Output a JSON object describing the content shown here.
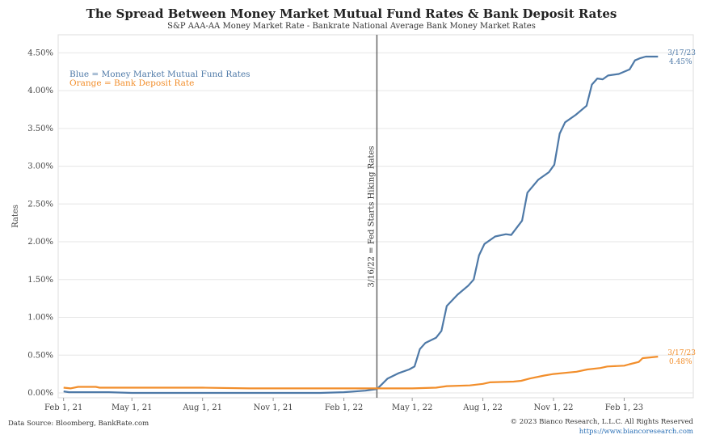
{
  "header": {
    "title": "The Spread Between Money Market Mutual Fund Rates & Bank Deposit Rates",
    "subtitle": "S&P AAA-AA Money Market Rate - Bankrate National Average Bank Money Market Rates"
  },
  "footer": {
    "source": "Data Source: Bloomberg, BankRate.com",
    "copyright": "© 2023 Bianco Research, L.L.C. All Rights Reserved",
    "url": "https://www.biancoresearch.com"
  },
  "colors": {
    "blue": "#4e79a7",
    "orange": "#f28e2b",
    "vline": "#666666",
    "grid": "#e6e6e6"
  },
  "chart_data": {
    "type": "line",
    "ylabel": "Rates",
    "ylim": [
      0,
      4.6
    ],
    "y_ticks": [
      0,
      0.5,
      1.0,
      1.5,
      2.0,
      2.5,
      3.0,
      3.5,
      4.0,
      4.5
    ],
    "y_tick_labels": [
      "0.00%",
      "0.50%",
      "1.00%",
      "1.50%",
      "2.00%",
      "2.50%",
      "3.00%",
      "3.50%",
      "4.00%",
      "4.50%"
    ],
    "x_range": [
      "2021-01-25",
      "2023-05-02"
    ],
    "x_ticks": [
      "2021-02-01",
      "2021-05-01",
      "2021-08-01",
      "2021-11-01",
      "2022-02-01",
      "2022-05-01",
      "2022-08-01",
      "2022-11-01",
      "2023-02-01"
    ],
    "x_tick_labels": [
      "Feb 1, 21",
      "May 1, 21",
      "Aug 1, 21",
      "Nov 1, 21",
      "Feb 1, 22",
      "May 1, 22",
      "Aug 1, 22",
      "Nov 1, 22",
      "Feb 1, 23"
    ],
    "legend": {
      "placement": "top-left",
      "entries": [
        "Blue = Money Market Mutual Fund Rates",
        "Orange = Bank Deposit Rate"
      ]
    },
    "vline": {
      "x": "2022-03-16",
      "label": "3/16/22 = Fed Starts Hiking Rates"
    },
    "series": [
      {
        "name": "Money Market Mutual Fund Rates",
        "color": "#4e79a7",
        "end_label_date": "3/17/23",
        "end_label_value": "4.45%",
        "points": [
          [
            "2021-02-01",
            0.02
          ],
          [
            "2021-02-08",
            0.01
          ],
          [
            "2021-03-01",
            0.01
          ],
          [
            "2021-04-01",
            0.01
          ],
          [
            "2021-05-01",
            0.0
          ],
          [
            "2021-06-01",
            0.0
          ],
          [
            "2021-07-01",
            0.0
          ],
          [
            "2021-08-01",
            0.0
          ],
          [
            "2021-09-01",
            0.0
          ],
          [
            "2021-10-01",
            0.0
          ],
          [
            "2021-11-01",
            0.0
          ],
          [
            "2021-12-01",
            0.0
          ],
          [
            "2022-01-01",
            0.0
          ],
          [
            "2022-02-01",
            0.01
          ],
          [
            "2022-03-01",
            0.03
          ],
          [
            "2022-03-16",
            0.05
          ],
          [
            "2022-03-23",
            0.12
          ],
          [
            "2022-03-30",
            0.19
          ],
          [
            "2022-04-13",
            0.26
          ],
          [
            "2022-04-27",
            0.31
          ],
          [
            "2022-05-04",
            0.35
          ],
          [
            "2022-05-11",
            0.58
          ],
          [
            "2022-05-18",
            0.66
          ],
          [
            "2022-06-01",
            0.73
          ],
          [
            "2022-06-08",
            0.82
          ],
          [
            "2022-06-15",
            1.15
          ],
          [
            "2022-06-29",
            1.3
          ],
          [
            "2022-07-13",
            1.42
          ],
          [
            "2022-07-20",
            1.5
          ],
          [
            "2022-07-27",
            1.82
          ],
          [
            "2022-08-03",
            1.97
          ],
          [
            "2022-08-17",
            2.07
          ],
          [
            "2022-08-31",
            2.1
          ],
          [
            "2022-09-07",
            2.09
          ],
          [
            "2022-09-21",
            2.28
          ],
          [
            "2022-09-28",
            2.65
          ],
          [
            "2022-10-12",
            2.82
          ],
          [
            "2022-10-26",
            2.92
          ],
          [
            "2022-11-02",
            3.02
          ],
          [
            "2022-11-09",
            3.43
          ],
          [
            "2022-11-16",
            3.58
          ],
          [
            "2022-11-30",
            3.68
          ],
          [
            "2022-12-14",
            3.8
          ],
          [
            "2022-12-21",
            4.08
          ],
          [
            "2022-12-28",
            4.16
          ],
          [
            "2023-01-04",
            4.15
          ],
          [
            "2023-01-11",
            4.2
          ],
          [
            "2023-01-25",
            4.22
          ],
          [
            "2023-02-08",
            4.28
          ],
          [
            "2023-02-15",
            4.4
          ],
          [
            "2023-02-22",
            4.43
          ],
          [
            "2023-03-01",
            4.45
          ],
          [
            "2023-03-17",
            4.45
          ]
        ]
      },
      {
        "name": "Bank Deposit Rate",
        "color": "#f28e2b",
        "end_label_date": "3/17/23",
        "end_label_value": "0.48%",
        "points": [
          [
            "2021-02-01",
            0.07
          ],
          [
            "2021-02-10",
            0.06
          ],
          [
            "2021-02-20",
            0.08
          ],
          [
            "2021-03-15",
            0.08
          ],
          [
            "2021-03-20",
            0.07
          ],
          [
            "2021-05-01",
            0.07
          ],
          [
            "2021-08-01",
            0.07
          ],
          [
            "2021-10-01",
            0.06
          ],
          [
            "2021-11-01",
            0.06
          ],
          [
            "2022-02-01",
            0.06
          ],
          [
            "2022-03-16",
            0.06
          ],
          [
            "2022-05-01",
            0.06
          ],
          [
            "2022-06-01",
            0.07
          ],
          [
            "2022-06-15",
            0.09
          ],
          [
            "2022-07-15",
            0.1
          ],
          [
            "2022-08-01",
            0.12
          ],
          [
            "2022-08-10",
            0.14
          ],
          [
            "2022-09-10",
            0.15
          ],
          [
            "2022-09-20",
            0.16
          ],
          [
            "2022-10-01",
            0.19
          ],
          [
            "2022-10-20",
            0.23
          ],
          [
            "2022-11-01",
            0.25
          ],
          [
            "2022-11-20",
            0.27
          ],
          [
            "2022-12-01",
            0.28
          ],
          [
            "2022-12-15",
            0.31
          ],
          [
            "2023-01-01",
            0.33
          ],
          [
            "2023-01-10",
            0.35
          ],
          [
            "2023-02-01",
            0.36
          ],
          [
            "2023-02-08",
            0.38
          ],
          [
            "2023-02-20",
            0.41
          ],
          [
            "2023-02-25",
            0.46
          ],
          [
            "2023-03-17",
            0.48
          ]
        ]
      }
    ]
  }
}
